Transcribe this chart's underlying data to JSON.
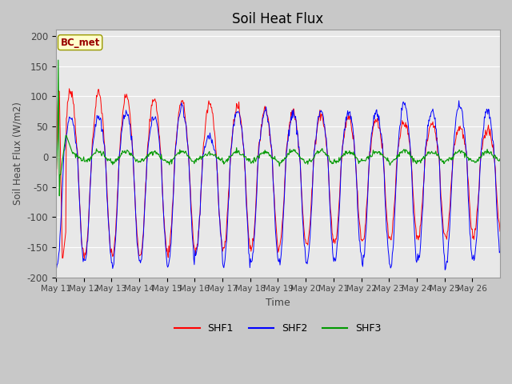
{
  "title": "Soil Heat Flux",
  "xlabel": "Time",
  "ylabel": "Soil Heat Flux (W/m2)",
  "ylim": [
    -200,
    210
  ],
  "annotation_text": "BC_met",
  "legend_labels": [
    "SHF1",
    "SHF2",
    "SHF3"
  ],
  "legend_colors": [
    "#ff0000",
    "#0000ff",
    "#009900"
  ],
  "line_colors": [
    "#ff0000",
    "#0000ff",
    "#009900"
  ],
  "bg_color": "#e8e8e8",
  "fig_bg_color": "#c8c8c8",
  "tick_label_color": "#444444",
  "grid_color": "#ffffff",
  "n_days": 16,
  "pts_per_day": 48,
  "start_day": 11,
  "month": "May"
}
